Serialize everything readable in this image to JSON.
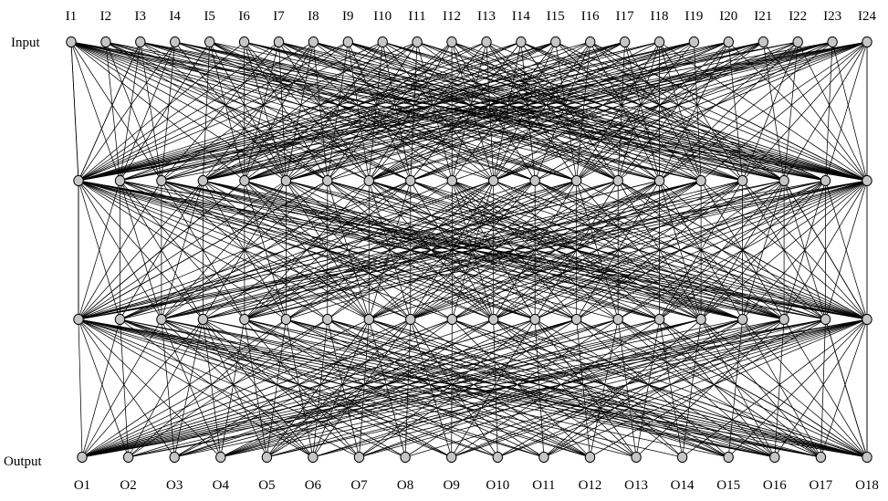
{
  "title": "",
  "input_label": "Input",
  "output_label": "Output",
  "input_nodes": [
    "I1",
    "I2",
    "I3",
    "I4",
    "I5",
    "I6",
    "I7",
    "I8",
    "I9",
    "I10",
    "I11",
    "I12",
    "I13",
    "I14",
    "I15",
    "I16",
    "I17",
    "I18",
    "I19",
    "I20",
    "I21",
    "I22",
    "I23",
    "I24"
  ],
  "hidden_layer_1_count": 20,
  "hidden_layer_2_count": 20,
  "output_nodes": [
    "O1",
    "O2",
    "O3",
    "O4",
    "O5",
    "O6",
    "O7",
    "O8",
    "O9",
    "O10",
    "O11",
    "O12",
    "O13",
    "O14",
    "O15",
    "O16",
    "O17",
    "O18"
  ],
  "colors": {
    "node_fill": "#c6c6c6",
    "node_stroke": "#000000",
    "edge": "#000000"
  }
}
